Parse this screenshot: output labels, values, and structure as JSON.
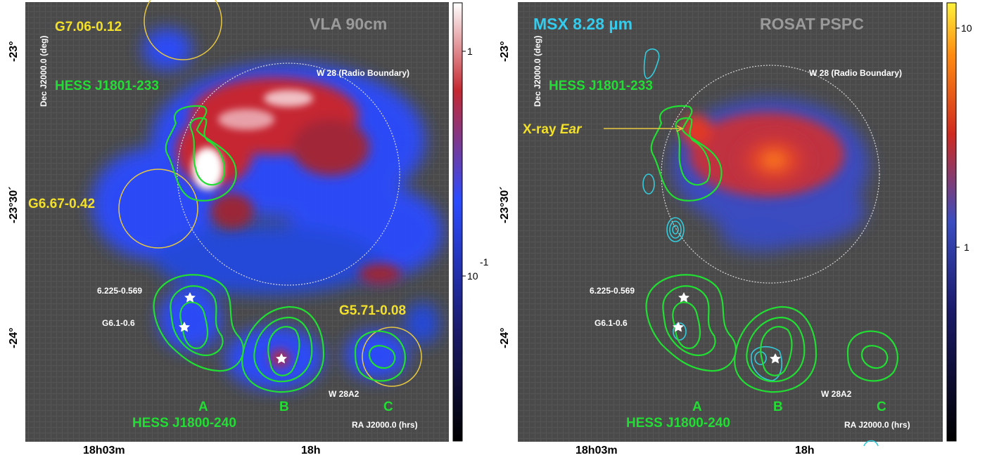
{
  "left_panel": {
    "title": "VLA 90cm",
    "source_labels": {
      "g706": "G7.06-0.12",
      "g667": "G6.67-0.42",
      "g571": "G5.71-0.08",
      "hess_north": "HESS J1801-233",
      "hess_south": "HESS J1800-240",
      "a": "A",
      "b": "B",
      "c": "C",
      "w28": "W 28 (Radio Boundary)",
      "w28a2": "W 28A2",
      "s6225": "6.225-0.569",
      "g61": "G6.1-0.6"
    },
    "ra_axis_title": "RA J2000.0 (hrs)",
    "dec_axis_title": "Dec J2000.0 (deg)",
    "ra_ticks": [
      "18h03m",
      "18h"
    ],
    "dec_ticks": [
      "-23°",
      "-23°30´",
      "-24°"
    ],
    "colorbar_ticks": [
      "1",
      "10",
      "-1"
    ],
    "colormap": [
      "#000000",
      "#1a1a6a",
      "#2b4bff",
      "#c52830",
      "#ffffff"
    ]
  },
  "right_panel": {
    "title": "ROSAT PSPC",
    "overlay_title": "MSX 8.28 µm",
    "ear_label_prefix": "X-ray ",
    "ear_label_em": "Ear",
    "source_labels": {
      "hess_north": "HESS J1801-233",
      "hess_south": "HESS J1800-240",
      "a": "A",
      "b": "B",
      "c": "C",
      "w28": "W 28 (Radio Boundary)",
      "w28a2": "W 28A2",
      "s6225": "6.225-0.569",
      "g61": "G6.1-0.6"
    },
    "ra_axis_title": "RA J2000.0 (hrs)",
    "dec_axis_title": "Dec J2000.0 (deg)",
    "ra_ticks": [
      "18h03m",
      "18h"
    ],
    "dec_ticks": [
      "-23°",
      "-23°30´",
      "-24°"
    ],
    "colorbar_ticks": [
      "10",
      "1"
    ],
    "colormap": [
      "#000000",
      "#1a1a6a",
      "#3a4cc0",
      "#d02a20",
      "#ff8a10",
      "#fff13a"
    ]
  },
  "colors": {
    "hess_contour": "#22dd33",
    "msx_contour": "#33ccdd",
    "circle": "#e8c840",
    "boundary": "#d8d8d8"
  }
}
